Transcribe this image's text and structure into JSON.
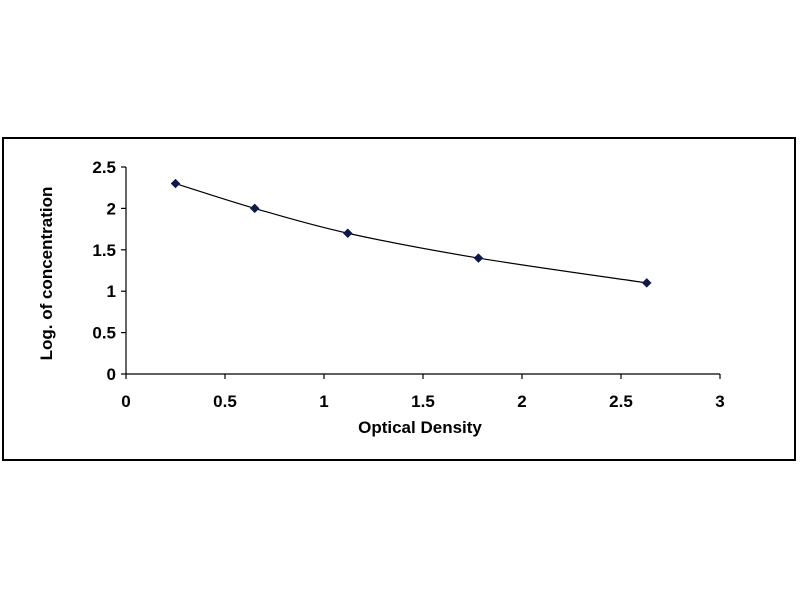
{
  "chart_data": {
    "type": "scatter",
    "title": "",
    "xlabel": "Optical Density",
    "ylabel": "Log. of concentration",
    "xlim": [
      0,
      3
    ],
    "ylim": [
      0,
      2.5
    ],
    "x_ticks": [
      "0",
      "0.5",
      "1",
      "1.5",
      "2",
      "2.5",
      "3"
    ],
    "y_ticks": [
      "0",
      "0.5",
      "1",
      "1.5",
      "2",
      "2.5"
    ],
    "grid": false,
    "legend": "none",
    "series": [
      {
        "x": [
          0.25,
          0.65,
          1.12,
          1.78,
          2.63
        ],
        "y": [
          2.3,
          2.0,
          1.7,
          1.4,
          1.1
        ],
        "marker": "diamond",
        "line": "smooth",
        "color": "#0b1a4a"
      }
    ]
  }
}
